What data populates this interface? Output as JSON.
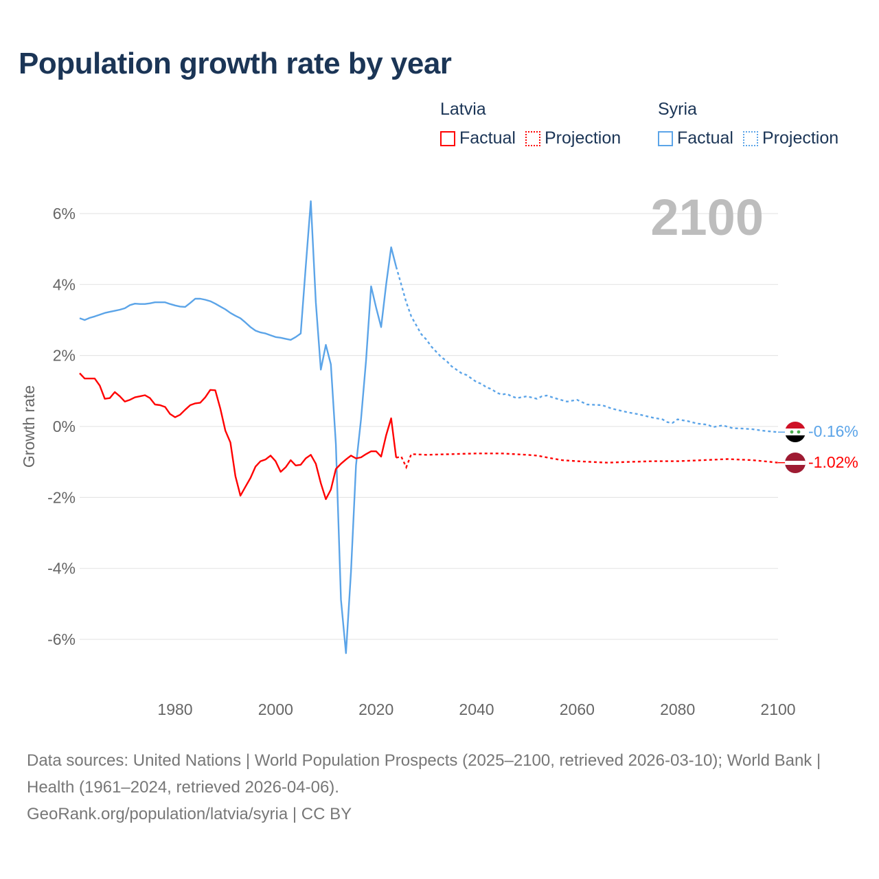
{
  "title": "Population growth rate by year",
  "legend": [
    {
      "country": "Latvia",
      "color": "#ff0000",
      "factual_label": "Factual",
      "projection_label": "Projection"
    },
    {
      "country": "Syria",
      "color": "#5ba4e8",
      "factual_label": "Factual",
      "projection_label": "Projection"
    }
  ],
  "year_label": "2100",
  "footer": {
    "sources": "Data sources: United Nations | World Population Prospects (2025–2100, retrieved 2026-03-10); World Bank | Health (1961–2024, retrieved 2026-04-06).",
    "credit": "GeoRank.org/population/latvia/syria | CC BY"
  },
  "chart_data": {
    "type": "line",
    "title": "Population growth rate by year",
    "xlabel": "",
    "ylabel": "Growth rate",
    "xlim": [
      1961,
      2100
    ],
    "ylim": [
      -7,
      6.5
    ],
    "x_ticks": [
      1980,
      2000,
      2020,
      2040,
      2060,
      2080,
      2100
    ],
    "x_tick_labels": [
      "1980",
      "2000",
      "2020",
      "2040",
      "2060",
      "2080",
      "2100"
    ],
    "y_ticks": [
      6,
      4,
      2,
      0,
      -2,
      -4,
      -6
    ],
    "y_tick_labels": [
      "6%",
      "4%",
      "2%",
      "0%",
      "-2%",
      "-4%",
      "-6%"
    ],
    "grid": true,
    "legend_position": "top-right",
    "series": [
      {
        "name": "Syria",
        "color": "#5ba4e8",
        "end_label": "-0.16%",
        "factual": {
          "start_year": 1961,
          "values": [
            3.05,
            3.0,
            3.06,
            3.1,
            3.15,
            3.2,
            3.23,
            3.26,
            3.29,
            3.33,
            3.42,
            3.46,
            3.45,
            3.45,
            3.47,
            3.5,
            3.5,
            3.5,
            3.45,
            3.41,
            3.38,
            3.37,
            3.48,
            3.6,
            3.6,
            3.57,
            3.53,
            3.46,
            3.38,
            3.3,
            3.2,
            3.12,
            3.05,
            2.93,
            2.8,
            2.7,
            2.65,
            2.62,
            2.57,
            2.52,
            2.5,
            2.47,
            2.44,
            2.52,
            2.62,
            4.5,
            6.35,
            3.5,
            1.6,
            2.3,
            1.75,
            -0.5,
            -4.88,
            -6.39,
            -4.1,
            -1.1,
            0.2,
            1.85,
            3.95,
            3.35,
            2.8,
            4.0,
            5.05,
            4.5
          ]
        },
        "projection": {
          "x": [
            2024,
            2025,
            2026,
            2027,
            2028,
            2029,
            2030,
            2031,
            2032,
            2033,
            2034,
            2035,
            2036,
            2037,
            2038,
            2039,
            2040,
            2041,
            2042,
            2043,
            2044,
            2045,
            2046,
            2047,
            2048,
            2050,
            2052,
            2053,
            2054,
            2056,
            2058,
            2060,
            2062,
            2065,
            2067,
            2070,
            2072,
            2075,
            2077,
            2078,
            2079,
            2080,
            2082,
            2084,
            2086,
            2087,
            2089,
            2091,
            2093,
            2095,
            2097,
            2100
          ],
          "y": [
            4.5,
            4.0,
            3.5,
            3.1,
            2.85,
            2.6,
            2.45,
            2.25,
            2.1,
            1.95,
            1.85,
            1.7,
            1.6,
            1.5,
            1.45,
            1.35,
            1.25,
            1.2,
            1.1,
            1.05,
            0.95,
            0.9,
            0.92,
            0.85,
            0.8,
            0.85,
            0.78,
            0.85,
            0.87,
            0.78,
            0.7,
            0.75,
            0.62,
            0.6,
            0.5,
            0.4,
            0.35,
            0.25,
            0.2,
            0.12,
            0.1,
            0.2,
            0.15,
            0.08,
            0.05,
            -0.02,
            0.03,
            -0.05,
            -0.06,
            -0.08,
            -0.12,
            -0.16
          ]
        }
      },
      {
        "name": "Latvia",
        "color": "#ff0000",
        "end_label": "-1.02%",
        "factual": {
          "start_year": 1961,
          "values": [
            1.5,
            1.35,
            1.35,
            1.35,
            1.15,
            0.78,
            0.8,
            0.97,
            0.85,
            0.7,
            0.75,
            0.82,
            0.85,
            0.88,
            0.8,
            0.62,
            0.6,
            0.55,
            0.35,
            0.26,
            0.33,
            0.47,
            0.6,
            0.65,
            0.67,
            0.82,
            1.03,
            1.02,
            0.5,
            -0.12,
            -0.45,
            -1.4,
            -1.95,
            -1.7,
            -1.45,
            -1.13,
            -0.98,
            -0.93,
            -0.82,
            -0.98,
            -1.28,
            -1.15,
            -0.95,
            -1.1,
            -1.08,
            -0.9,
            -0.8,
            -1.05,
            -1.6,
            -2.05,
            -1.78,
            -1.2,
            -1.05,
            -0.93,
            -0.82,
            -0.9,
            -0.87,
            -0.78,
            -0.7,
            -0.7,
            -0.85,
            -0.25,
            0.23,
            -0.88
          ]
        },
        "projection": {
          "x": [
            2024,
            2025,
            2026,
            2027,
            2030,
            2035,
            2040,
            2045,
            2050,
            2052,
            2055,
            2057,
            2060,
            2063,
            2066,
            2070,
            2075,
            2080,
            2085,
            2090,
            2095,
            2100
          ],
          "y": [
            -0.88,
            -0.85,
            -1.15,
            -0.78,
            -0.8,
            -0.78,
            -0.76,
            -0.76,
            -0.8,
            -0.82,
            -0.9,
            -0.95,
            -0.98,
            -1.0,
            -1.02,
            -1.0,
            -0.98,
            -0.98,
            -0.95,
            -0.92,
            -0.95,
            -1.02
          ]
        }
      }
    ]
  }
}
